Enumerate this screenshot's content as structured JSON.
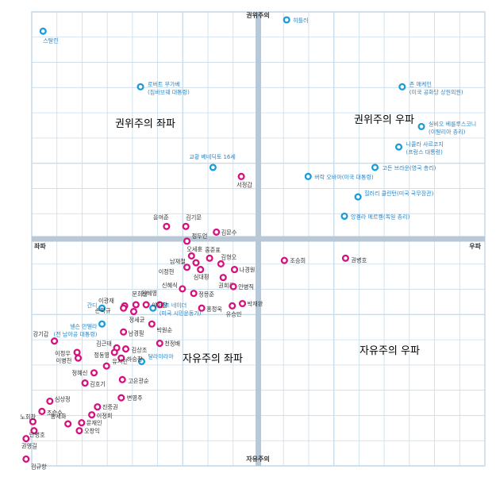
{
  "chart_data": {
    "type": "scatter",
    "title": "",
    "axis_labels": {
      "top": "권위주의",
      "bottom": "자유주의",
      "left": "좌파",
      "right": "우파"
    },
    "quadrant_labels": {
      "top_left": "권위주의 좌파",
      "top_right": "권위주의 우파",
      "bottom_left": "자유주의 좌파",
      "bottom_right": "자유주의 우파"
    },
    "xlim": [
      -10,
      10
    ],
    "ylim": [
      -10,
      10
    ],
    "grid": true,
    "colors": {
      "grid": "#c8dcea",
      "axis": "#b8c8d6",
      "international": "#1a9cd8",
      "domestic": "#d6107e",
      "label_blue": "#2a86c8",
      "label_dark": "#333333",
      "quadrant_text": "#9a9a9a"
    },
    "series": [
      {
        "name": "",
        "points": [
          {
            "label": "스탈린",
            "x": -9.5,
            "y": 9.15
          },
          {
            "label": "히틀러",
            "x": 1.25,
            "y": 9.65
          },
          {
            "label": "로버트 무가베\n(짐바브웨 대통령)",
            "x": -5.2,
            "y": 6.7
          },
          {
            "label": "존 매케인\n(미국 공화당 상원의원)",
            "x": 6.35,
            "y": 6.7
          },
          {
            "label": "실비오 베를루스코니\n(이탈리아 총리)",
            "x": 7.2,
            "y": 4.95
          },
          {
            "label": "니콜라 사르코지\n(프랑스 대통령)",
            "x": 6.2,
            "y": 4.05
          },
          {
            "label": "교황 베네딕토 16세",
            "x": -2.0,
            "y": 3.15
          },
          {
            "label": "고든 브라운(영국 총리)",
            "x": 5.15,
            "y": 3.15
          },
          {
            "label": "버락 오바마(미국 대통령)",
            "x": 2.2,
            "y": 2.75
          },
          {
            "label": "힐러리 클린턴(미국 국무장관)",
            "x": 4.4,
            "y": 1.85
          },
          {
            "label": "앙겔라 메르켈(독일 총리)",
            "x": 3.8,
            "y": 1.0
          },
          {
            "label": "간디",
            "x": -6.9,
            "y": -3.05
          },
          {
            "label": "넬슨 만델라\n(전 남아공 대통령)",
            "x": -6.9,
            "y": -3.75
          },
          {
            "label": "랠프 네이더\n(미국 시민운동가)",
            "x": -4.65,
            "y": -3.05
          },
          {
            "label": "달라이라마",
            "x": -5.15,
            "y": -5.4
          }
        ]
      },
      {
        "name": "",
        "points": [
          {
            "label": "서정갑",
            "x": -0.75,
            "y": 2.75
          },
          {
            "label": "윤여준",
            "x": -4.05,
            "y": 0.55
          },
          {
            "label": "김기문",
            "x": -3.2,
            "y": 0.55
          },
          {
            "label": "김문수",
            "x": -1.85,
            "y": 0.3
          },
          {
            "label": "정두언",
            "x": -3.15,
            "y": -0.1
          },
          {
            "label": "조승희",
            "x": 1.15,
            "y": -0.95
          },
          {
            "label": "권병호",
            "x": 3.85,
            "y": -0.85
          },
          {
            "label": "오세훈",
            "x": -2.95,
            "y": -0.75
          },
          {
            "label": "홍준표",
            "x": -2.15,
            "y": -0.85
          },
          {
            "label": "남재철",
            "x": -2.75,
            "y": -1.05
          },
          {
            "label": "김형오",
            "x": -1.65,
            "y": -1.1
          },
          {
            "label": "이정현",
            "x": -3.15,
            "y": -1.25
          },
          {
            "label": "심대평",
            "x": -2.55,
            "y": -1.35
          },
          {
            "label": "나경원",
            "x": -1.05,
            "y": -1.35
          },
          {
            "label": "권희룡",
            "x": -1.55,
            "y": -1.7
          },
          {
            "label": "신혜식",
            "x": -3.35,
            "y": -2.2
          },
          {
            "label": "정몽준",
            "x": -2.85,
            "y": -2.4
          },
          {
            "label": "안병직",
            "x": -1.1,
            "y": -2.1
          },
          {
            "label": "박재완",
            "x": -0.7,
            "y": -2.85
          },
          {
            "label": "원혜영",
            "x": -4.95,
            "y": -2.9
          },
          {
            "label": "이광재",
            "x": -5.9,
            "y": -2.95
          },
          {
            "label": "손학규",
            "x": -5.95,
            "y": -3.05
          },
          {
            "label": "문희상",
            "x": -5.4,
            "y": -2.9
          },
          {
            "label": "정세균",
            "x": -5.5,
            "y": -3.2
          },
          {
            "label": "이회창",
            "x": -4.35,
            "y": -2.9
          },
          {
            "label": "홍정욱",
            "x": -2.5,
            "y": -3.05
          },
          {
            "label": "유승민",
            "x": -1.15,
            "y": -2.95
          },
          {
            "label": "남경필",
            "x": -5.95,
            "y": -4.1
          },
          {
            "label": "박원순",
            "x": -4.7,
            "y": -3.75
          },
          {
            "label": "강기갑",
            "x": -9.0,
            "y": -4.5
          },
          {
            "label": "김근태",
            "x": -6.25,
            "y": -4.8
          },
          {
            "label": "김상조",
            "x": -5.85,
            "y": -4.85
          },
          {
            "label": "천정배",
            "x": -4.35,
            "y": -4.6
          },
          {
            "label": "정동영",
            "x": -6.35,
            "y": -5.0
          },
          {
            "label": "이정우",
            "x": -8.0,
            "y": -5.0
          },
          {
            "label": "이병천",
            "x": -7.95,
            "y": -5.25
          },
          {
            "label": "하승창",
            "x": -6.05,
            "y": -5.25
          },
          {
            "label": "유시민",
            "x": -6.7,
            "y": -5.6
          },
          {
            "label": "정혜신",
            "x": -7.25,
            "y": -5.9
          },
          {
            "label": "고은광순",
            "x": -6.0,
            "y": -6.2
          },
          {
            "label": "김호기",
            "x": -7.65,
            "y": -6.35
          },
          {
            "label": "변영주",
            "x": -6.05,
            "y": -7.0
          },
          {
            "label": "심상정",
            "x": -9.2,
            "y": -7.15
          },
          {
            "label": "조승수",
            "x": -9.55,
            "y": -7.6
          },
          {
            "label": "진중권",
            "x": -7.1,
            "y": -7.4
          },
          {
            "label": "이정희",
            "x": -7.35,
            "y": -7.75
          },
          {
            "label": "노회찬",
            "x": -9.95,
            "y": -8.05
          },
          {
            "label": "홍세화",
            "x": -8.4,
            "y": -8.15
          },
          {
            "label": "문재인",
            "x": -7.8,
            "y": -8.1
          },
          {
            "label": "단병호",
            "x": -9.9,
            "y": -8.45
          },
          {
            "label": "오창익",
            "x": -7.9,
            "y": -8.45
          },
          {
            "label": "권영길",
            "x": -10.25,
            "y": -8.8
          },
          {
            "label": "김규항",
            "x": -10.25,
            "y": -9.7
          }
        ]
      }
    ]
  }
}
